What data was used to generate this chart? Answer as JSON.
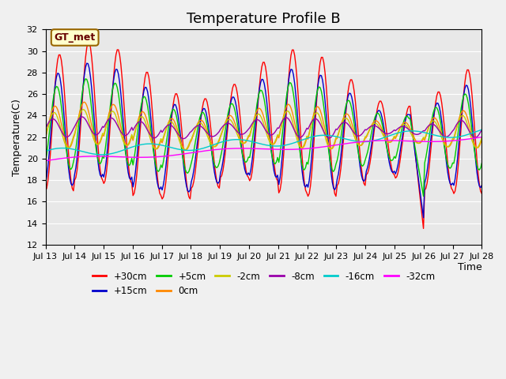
{
  "title": "Temperature Profile B",
  "xlabel": "Time",
  "ylabel": "Temperature(C)",
  "ylim": [
    12,
    32
  ],
  "yticks": [
    12,
    14,
    16,
    18,
    20,
    22,
    24,
    26,
    28,
    30,
    32
  ],
  "xtick_labels": [
    "Jul 13",
    "Jul 14",
    "Jul 15",
    "Jul 16",
    "Jul 17",
    "Jul 18",
    "Jul 19",
    "Jul 20",
    "Jul 21",
    "Jul 22",
    "Jul 23",
    "Jul 24",
    "Jul 25",
    "Jul 26",
    "Jul 27",
    "Jul 28"
  ],
  "annotation_text": "GT_met",
  "colors": {
    "+30cm": "#ff0000",
    "+15cm": "#0000cc",
    "+5cm": "#00cc00",
    "0cm": "#ff8800",
    "-2cm": "#cccc00",
    "-8cm": "#9900aa",
    "-16cm": "#00cccc",
    "-32cm": "#ff00ff"
  },
  "background_color": "#e8e8e8",
  "title_fontsize": 13
}
